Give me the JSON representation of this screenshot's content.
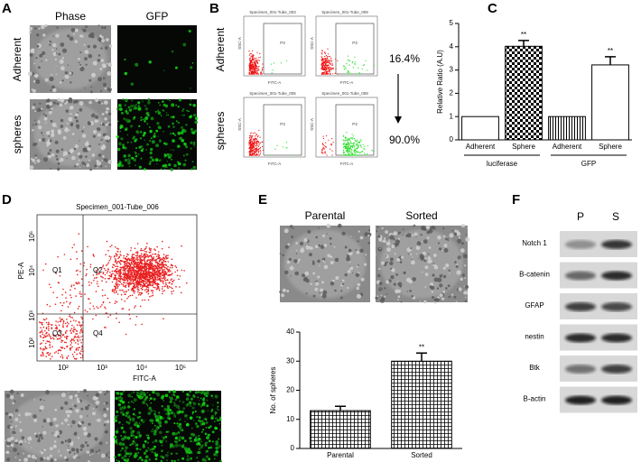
{
  "panels": {
    "A": {
      "letter": "A",
      "columns": [
        "Phase",
        "GFP"
      ],
      "rows": [
        "Adherent",
        "spheres"
      ]
    },
    "B": {
      "letter": "B",
      "rows": [
        "Adherent",
        "spheres"
      ],
      "plots": [
        {
          "title": "Specimen_001-Tube_003",
          "gate": "P3"
        },
        {
          "title": "Specimen_001-Tube_009",
          "gate": "P3"
        },
        {
          "title": "Specimen_001-Tube_005",
          "gate": "P3"
        },
        {
          "title": "Specimen_001-Tube_008",
          "gate": "P3"
        }
      ],
      "y_axis": "SSC-A",
      "x_axis": "FITC-A",
      "percentages": [
        "16.4%",
        "90.0%"
      ]
    },
    "C": {
      "letter": "C"
    },
    "D": {
      "letter": "D",
      "title": "Specimen_001-Tube_006",
      "x_axis": "FITC-A",
      "y_axis": "PE-A",
      "quadrants": [
        "Q1",
        "Q2",
        "Q3",
        "Q4"
      ],
      "xticks": [
        "10²",
        "10³",
        "10⁴",
        "10⁵"
      ],
      "yticks": [
        "10²",
        "10³",
        "10⁴",
        "10⁵"
      ]
    },
    "E": {
      "letter": "E",
      "images": [
        "Parental",
        "Sorted"
      ]
    },
    "F": {
      "letter": "F",
      "lanes": [
        "P",
        "S"
      ],
      "proteins": [
        "Notch 1",
        "B-catenin",
        "GFAP",
        "nestin",
        "Btk",
        "B-actin"
      ]
    }
  },
  "chart_data": [
    {
      "type": "bar",
      "y_label": "Relative Ratio (A.U)",
      "categories": [
        "Adherent",
        "Sphere",
        "Adherent",
        "Sphere"
      ],
      "values": [
        1,
        4.02,
        1,
        3.22
      ],
      "errors": [
        null,
        0.25,
        null,
        0.35
      ],
      "color": "#000000",
      "bar_patterns": [
        "none",
        "checker",
        "vertical",
        "none"
      ],
      "groups": [
        "luciferase",
        "GFP"
      ],
      "annotations": [
        null,
        "**",
        null,
        "**"
      ],
      "ylim": [
        0,
        5
      ],
      "yticks": [
        0,
        1,
        2,
        3,
        4,
        5
      ]
    },
    {
      "type": "bar",
      "y_label": "No. of spheres",
      "categories": [
        "Parental",
        "Sorted"
      ],
      "values": [
        13,
        30
      ],
      "errors": [
        1.5,
        2.8
      ],
      "color": "#000000",
      "bar_patterns": [
        "grid",
        "grid"
      ],
      "annotations": [
        null,
        "**"
      ],
      "ylim": [
        0,
        40
      ],
      "yticks": [
        0,
        10,
        20,
        30,
        40
      ]
    }
  ]
}
